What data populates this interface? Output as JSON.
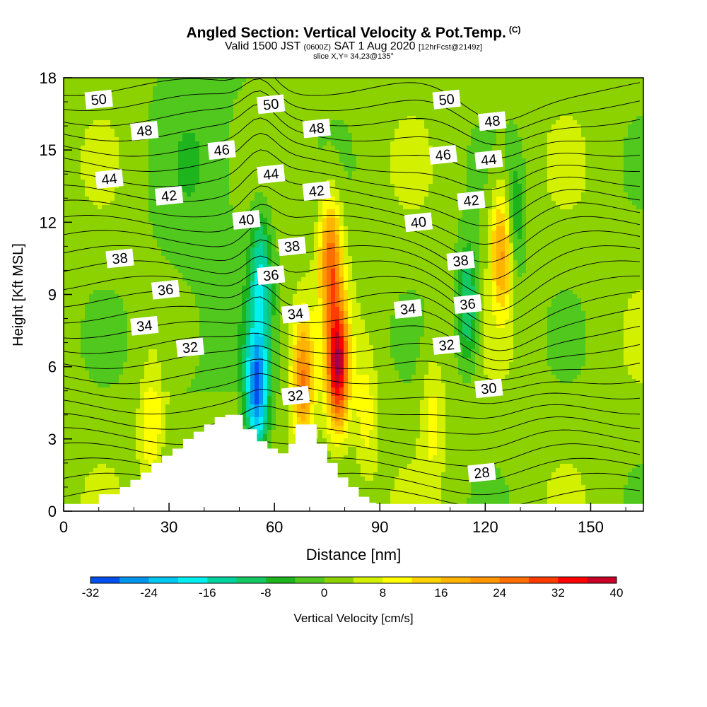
{
  "title": {
    "line1": "Angled Section: Vertical Velocity & Pot.Temp.",
    "copyright": "(C)",
    "line2_main": "Valid 1500 JST",
    "line2_utc": "(0600Z)",
    "line2_date": "SAT 1 Aug 2020",
    "line2_fcst": "[12hrFcst@2149z]",
    "line3": "slice X,Y= 34,23@135°"
  },
  "chart_data": {
    "type": "heatmap",
    "xlabel": "Distance [nm]",
    "ylabel": "Height [Kft MSL]",
    "xlim": [
      0,
      165
    ],
    "ylim": [
      0,
      18
    ],
    "x_ticks": [
      0,
      30,
      60,
      90,
      120,
      150
    ],
    "y_ticks": [
      0,
      3,
      6,
      9,
      12,
      15,
      18
    ],
    "colorbar": {
      "label": "Vertical Velocity [cm/s]",
      "min": -32,
      "max": 40,
      "step": 4,
      "tick_labels": [
        "-32",
        "-24",
        "-16",
        "-8",
        "0",
        "8",
        "16",
        "24",
        "32",
        "40"
      ],
      "colors": [
        "#0000f0",
        "#0050f0",
        "#0096f0",
        "#00c8f0",
        "#00f0f0",
        "#00d2a0",
        "#14c864",
        "#1eb41e",
        "#50c81e",
        "#8cd200",
        "#d2f000",
        "#ffff00",
        "#ffd200",
        "#ffb400",
        "#ff9600",
        "#ff6e00",
        "#ff3c00",
        "#ff0000",
        "#c80028",
        "#a00050",
        "#780078"
      ]
    },
    "features": [
      {
        "x": 55,
        "y": 5.0,
        "w": -30
      },
      {
        "x": 56,
        "y": 10.0,
        "w": -16
      },
      {
        "x": 68,
        "y": 5.5,
        "w": 22
      },
      {
        "x": 76,
        "y": 10.5,
        "w": 24
      },
      {
        "x": 78,
        "y": 6.0,
        "w": 36
      },
      {
        "x": 125,
        "y": 11.0,
        "w": 22
      },
      {
        "x": 115,
        "y": 8.5,
        "w": -16
      },
      {
        "x": 128,
        "y": 12.0,
        "w": -12
      },
      {
        "x": 105,
        "y": 4.0,
        "w": 8
      },
      {
        "x": 86,
        "y": 4.0,
        "w": 8
      },
      {
        "x": 25,
        "y": 3.5,
        "w": 10
      }
    ],
    "terrain": [
      [
        10,
        0.7
      ],
      [
        16,
        0.7
      ],
      [
        16,
        1.0
      ],
      [
        19,
        1.0
      ],
      [
        19,
        1.3
      ],
      [
        22,
        1.3
      ],
      [
        22,
        1.6
      ],
      [
        25,
        1.6
      ],
      [
        25,
        2.0
      ],
      [
        28,
        2.0
      ],
      [
        28,
        2.3
      ],
      [
        31,
        2.3
      ],
      [
        31,
        2.6
      ],
      [
        34,
        2.6
      ],
      [
        34,
        3.0
      ],
      [
        37,
        3.0
      ],
      [
        37,
        3.3
      ],
      [
        40,
        3.3
      ],
      [
        40,
        3.6
      ],
      [
        43,
        3.6
      ],
      [
        43,
        3.9
      ],
      [
        46,
        3.9
      ],
      [
        46,
        4.0
      ],
      [
        51,
        4.0
      ],
      [
        51,
        3.4
      ],
      [
        55,
        3.4
      ],
      [
        55,
        2.9
      ],
      [
        58,
        2.9
      ],
      [
        58,
        2.6
      ],
      [
        61,
        2.6
      ],
      [
        61,
        2.4
      ],
      [
        64,
        2.4
      ],
      [
        64,
        2.8
      ],
      [
        66,
        2.8
      ],
      [
        66,
        3.6
      ],
      [
        72,
        3.6
      ],
      [
        72,
        2.8
      ],
      [
        75,
        2.8
      ],
      [
        75,
        2.0
      ],
      [
        78,
        2.0
      ],
      [
        78,
        1.4
      ],
      [
        81,
        1.4
      ],
      [
        81,
        1.0
      ],
      [
        84,
        1.0
      ],
      [
        84,
        0.6
      ],
      [
        87,
        0.6
      ],
      [
        87,
        0.35
      ],
      [
        89,
        0.35
      ],
      [
        89,
        0.0
      ]
    ],
    "isentropes": [
      {
        "value": 50,
        "labels": [
          [
            10,
            17.1
          ],
          [
            59,
            16.9
          ],
          [
            109,
            17.1
          ]
        ]
      },
      {
        "value": 48,
        "labels": [
          [
            23,
            15.8
          ],
          [
            72,
            15.9
          ],
          [
            122,
            16.2
          ]
        ]
      },
      {
        "value": 46,
        "labels": [
          [
            45,
            15.0
          ],
          [
            108,
            14.8
          ]
        ]
      },
      {
        "value": 44,
        "labels": [
          [
            13,
            13.8
          ],
          [
            59,
            14.0
          ],
          [
            121,
            14.6
          ]
        ]
      },
      {
        "value": 42,
        "labels": [
          [
            30,
            13.1
          ],
          [
            72,
            13.3
          ],
          [
            116,
            12.9
          ]
        ]
      },
      {
        "value": 40,
        "labels": [
          [
            52,
            12.1
          ],
          [
            101,
            12.0
          ]
        ]
      },
      {
        "value": 38,
        "labels": [
          [
            16,
            10.5
          ],
          [
            65,
            11.0
          ],
          [
            113,
            10.4
          ]
        ]
      },
      {
        "value": 36,
        "labels": [
          [
            29,
            9.2
          ],
          [
            59,
            9.8
          ],
          [
            115,
            8.6
          ]
        ]
      },
      {
        "value": 34,
        "labels": [
          [
            23,
            7.7
          ],
          [
            66,
            8.2
          ],
          [
            98,
            8.4
          ]
        ]
      },
      {
        "value": 32,
        "labels": [
          [
            36,
            6.8
          ],
          [
            66,
            4.8
          ],
          [
            109,
            6.9
          ]
        ]
      },
      {
        "value": 30,
        "labels": [
          [
            121,
            5.1
          ]
        ]
      },
      {
        "value": 28,
        "labels": [
          [
            119,
            1.6
          ]
        ]
      }
    ]
  }
}
